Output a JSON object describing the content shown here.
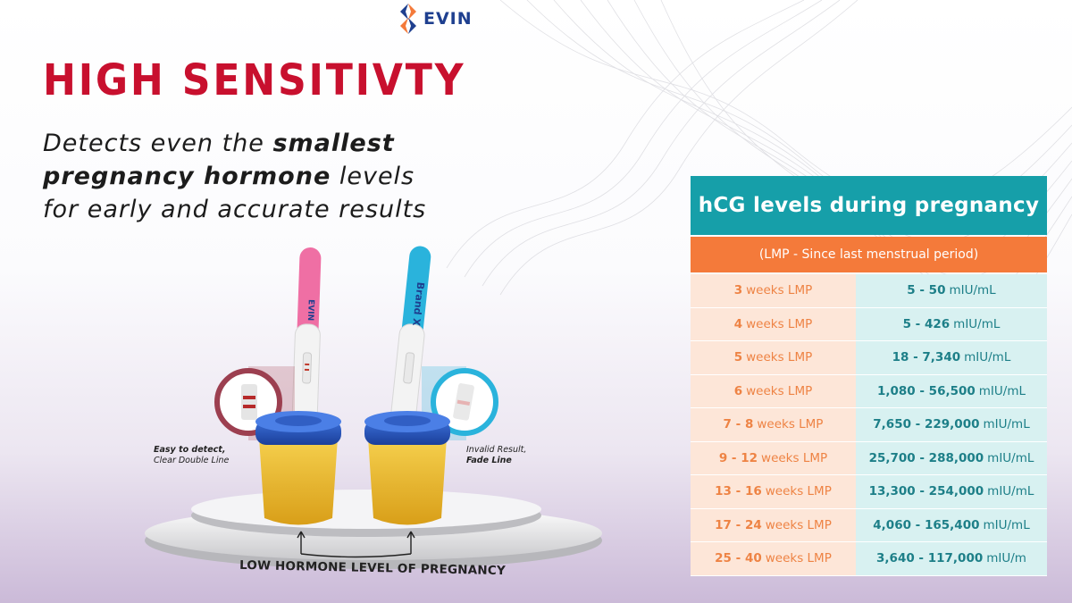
{
  "brand": {
    "name": "EVIN",
    "colors": {
      "blue": "#1e3f8f",
      "orange": "#f47a3a"
    }
  },
  "headline": "HIGH SENSITIVTY",
  "subtext": {
    "part1": "Detects even the ",
    "bold": "smallest pregnancy hormone",
    "part2": " levels for early and accurate results"
  },
  "product": {
    "left_test_label": "EVIN",
    "right_test_label": "Brand X",
    "left_callout": {
      "bold": "Easy to detect,",
      "text": "Clear Double Line"
    },
    "right_callout": {
      "text": "Invalid Result,",
      "bold": "Fade Line"
    },
    "platform_text": "LOW HORMONE LEVEL OF PREGNANCY"
  },
  "hcg_table": {
    "title": "hCG levels during pregnancy",
    "subtitle": "(LMP - Since last menstrual period)",
    "rows": [
      {
        "weeks": "3",
        "unit": "weeks LMP",
        "range": "5 - 50",
        "range_unit": "mIU/mL"
      },
      {
        "weeks": "4",
        "unit": "weeks LMP",
        "range": "5 - 426",
        "range_unit": "mIU/mL"
      },
      {
        "weeks": "5",
        "unit": "weeks LMP",
        "range": "18 - 7,340",
        "range_unit": "mIU/mL"
      },
      {
        "weeks": "6",
        "unit": "weeks LMP",
        "range": "1,080 - 56,500",
        "range_unit": "mIU/mL"
      },
      {
        "weeks": "7 - 8",
        "unit": "weeks LMP",
        "range": "7,650 - 229,000",
        "range_unit": "mIU/mL"
      },
      {
        "weeks": "9 - 12",
        "unit": "weeks LMP",
        "range": "25,700 - 288,000",
        "range_unit": "mIU/mL"
      },
      {
        "weeks": "13 - 16",
        "unit": "weeks LMP",
        "range": "13,300 - 254,000",
        "range_unit": "mIU/mL"
      },
      {
        "weeks": "17 - 24",
        "unit": "weeks LMP",
        "range": "4,060 - 165,400",
        "range_unit": "mIU/mL"
      },
      {
        "weeks": "25 - 40",
        "unit": "weeks LMP",
        "range": "3,640 - 117,000",
        "range_unit": "mIU/m"
      }
    ],
    "colors": {
      "header": "#169fa9",
      "subheader": "#f47a3a",
      "weeks_bg": "#fde6d8",
      "levels_bg": "#d8f1f1"
    }
  }
}
